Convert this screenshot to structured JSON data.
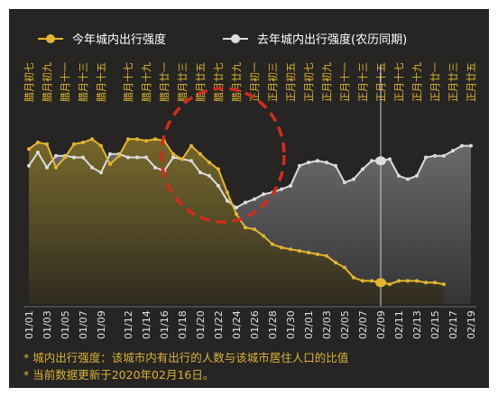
{
  "chart_data": {
    "type": "area",
    "legend": {
      "placement": "top"
    },
    "series": [
      {
        "name": "今年城内出行强度",
        "color": "#e2b630",
        "x": [
          "01/01",
          "01/02",
          "01/03",
          "01/04",
          "01/05",
          "01/06",
          "01/07",
          "01/08",
          "01/09",
          "01/10",
          "01/11",
          "01/12",
          "01/13",
          "01/14",
          "01/15",
          "01/16",
          "01/17",
          "01/18",
          "01/19",
          "01/20",
          "01/21",
          "01/22",
          "01/23",
          "01/24",
          "01/25",
          "01/26",
          "01/27",
          "01/28",
          "01/29",
          "01/30",
          "01/31",
          "02/01",
          "02/02",
          "02/03",
          "02/04",
          "02/05",
          "02/06",
          "02/07",
          "02/08",
          "02/09",
          "02/10",
          "02/11",
          "02/12",
          "02/13",
          "02/14",
          "02/15",
          "02/16"
        ],
        "values": [
          0.82,
          0.86,
          0.85,
          0.71,
          0.77,
          0.85,
          0.86,
          0.88,
          0.84,
          0.73,
          0.78,
          0.88,
          0.88,
          0.87,
          0.88,
          0.87,
          0.79,
          0.76,
          0.84,
          0.79,
          0.74,
          0.7,
          0.56,
          0.43,
          0.35,
          0.34,
          0.3,
          0.25,
          0.23,
          0.22,
          0.21,
          0.2,
          0.19,
          0.18,
          0.14,
          0.11,
          0.05,
          0.03,
          0.03,
          0.02,
          0.01,
          0.03,
          0.03,
          0.03,
          0.02,
          0.02,
          0.01
        ]
      },
      {
        "name": "去年城内出行强度(农历同期)",
        "color": "#dcdcdc",
        "x": [
          "01/01",
          "01/02",
          "01/03",
          "01/04",
          "01/05",
          "01/06",
          "01/07",
          "01/08",
          "01/09",
          "01/10",
          "01/11",
          "01/12",
          "01/13",
          "01/14",
          "01/15",
          "01/16",
          "01/17",
          "01/18",
          "01/19",
          "01/20",
          "01/21",
          "01/22",
          "01/23",
          "01/24",
          "01/25",
          "01/26",
          "01/27",
          "01/28",
          "01/29",
          "01/30",
          "01/31",
          "02/01",
          "02/02",
          "02/03",
          "02/04",
          "02/05",
          "02/06",
          "02/07",
          "02/08",
          "02/09",
          "02/10",
          "02/11",
          "02/12",
          "02/13",
          "02/14",
          "02/15",
          "02/16",
          "02/17",
          "02/18",
          "02/19"
        ],
        "values": [
          0.72,
          0.8,
          0.71,
          0.78,
          0.78,
          0.77,
          0.77,
          0.71,
          0.68,
          0.79,
          0.79,
          0.77,
          0.77,
          0.77,
          0.71,
          0.69,
          0.77,
          0.76,
          0.75,
          0.68,
          0.66,
          0.6,
          0.51,
          0.47,
          0.5,
          0.52,
          0.55,
          0.56,
          0.58,
          0.6,
          0.72,
          0.74,
          0.75,
          0.74,
          0.72,
          0.62,
          0.64,
          0.7,
          0.75,
          0.75,
          0.76,
          0.66,
          0.64,
          0.66,
          0.77,
          0.78,
          0.78,
          0.81,
          0.84,
          0.84
        ]
      }
    ],
    "tick_labels": [
      "01/01",
      "01/03",
      "01/05",
      "01/07",
      "01/09",
      "01/12",
      "01/14",
      "01/16",
      "01/18",
      "01/20",
      "01/22",
      "01/24",
      "01/26",
      "01/28",
      "01/30",
      "02/01",
      "02/03",
      "02/05",
      "02/07",
      "02/09",
      "02/11",
      "02/13",
      "02/15",
      "02/17",
      "02/19"
    ],
    "lunar_labels": [
      "腊月初七",
      "腊月初九",
      "腊月十一",
      "腊月十三",
      "腊月十五",
      "腊月十七",
      "腊月十九",
      "腊月廿一",
      "腊月廿三",
      "腊月廿五",
      "腊月廿七",
      "腊月廿九",
      "正月初一",
      "正月初三",
      "正月初五",
      "正月初七",
      "正月初九",
      "正月十一",
      "正月十三",
      "正月十五",
      "正月十七",
      "正月十九",
      "正月廿一",
      "正月廿三",
      "正月廿五"
    ],
    "highlight_date": "02/09",
    "annotation": "red dashed circle around 01/17 – 01/25",
    "grid": false
  },
  "notes": [
    "* 城内出行强度：该城市内有出行的人数与该城市居住人口的比值",
    "* 当前数据更新于2020年02月16日。"
  ],
  "colors": {
    "background": "#262523",
    "accent": "#e2b630",
    "secondary": "#dcdcdc",
    "circle": "#d42a1d"
  }
}
